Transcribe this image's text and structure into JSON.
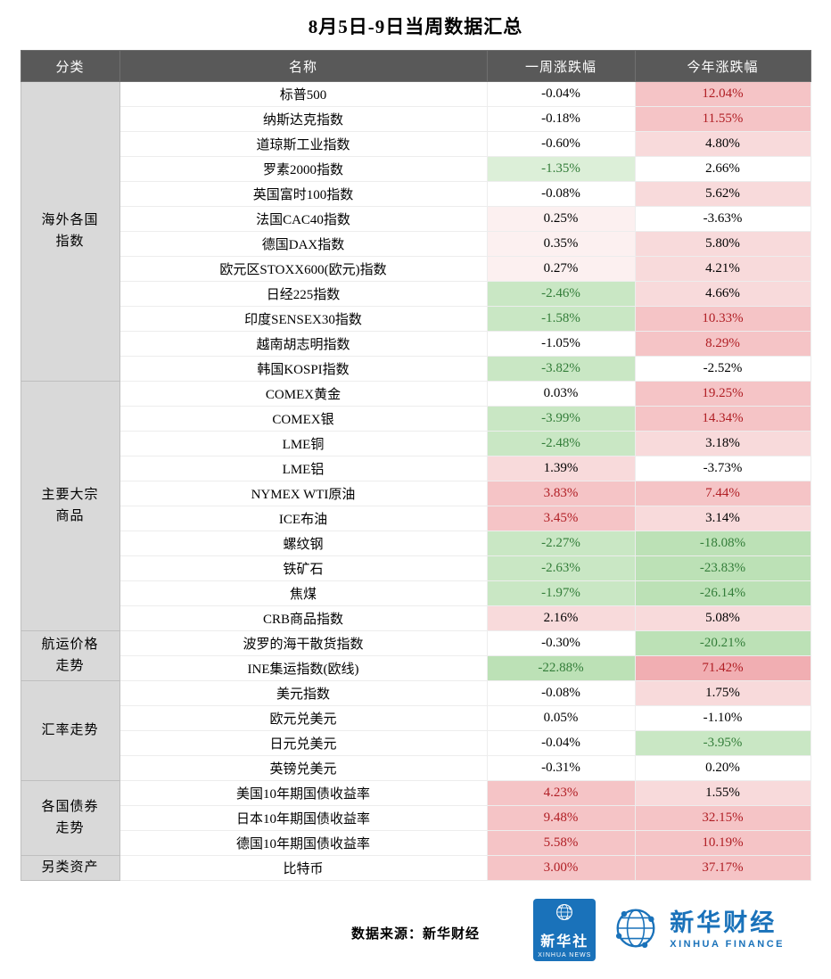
{
  "chart_data": {
    "type": "table",
    "title": "8月5日-9日当周数据汇总",
    "columns": [
      "分类",
      "名称",
      "一周涨跌幅",
      "今年涨跌幅"
    ],
    "groups": [
      {
        "category": "海外各国\n指数",
        "rows": [
          {
            "name": "标普500",
            "week": "-0.04%",
            "wc": "n",
            "ytd": "12.04%",
            "yc": "p3"
          },
          {
            "name": "纳斯达克指数",
            "week": "-0.18%",
            "wc": "n",
            "ytd": "11.55%",
            "yc": "p3"
          },
          {
            "name": "道琼斯工业指数",
            "week": "-0.60%",
            "wc": "n",
            "ytd": "4.80%",
            "yc": "p2"
          },
          {
            "name": "罗素2000指数",
            "week": "-1.35%",
            "wc": "g1",
            "ytd": "2.66%",
            "yc": "n"
          },
          {
            "name": "英国富时100指数",
            "week": "-0.08%",
            "wc": "n",
            "ytd": "5.62%",
            "yc": "p2"
          },
          {
            "name": "法国CAC40指数",
            "week": "0.25%",
            "wc": "p1",
            "ytd": "-3.63%",
            "yc": "n"
          },
          {
            "name": "德国DAX指数",
            "week": "0.35%",
            "wc": "p1",
            "ytd": "5.80%",
            "yc": "p2"
          },
          {
            "name": "欧元区STOXX600(欧元)指数",
            "week": "0.27%",
            "wc": "p1",
            "ytd": "4.21%",
            "yc": "p2"
          },
          {
            "name": "日经225指数",
            "week": "-2.46%",
            "wc": "g2",
            "ytd": "4.66%",
            "yc": "p2"
          },
          {
            "name": "印度SENSEX30指数",
            "week": "-1.58%",
            "wc": "g2",
            "ytd": "10.33%",
            "yc": "p3"
          },
          {
            "name": "越南胡志明指数",
            "week": "-1.05%",
            "wc": "n",
            "ytd": "8.29%",
            "yc": "p3"
          },
          {
            "name": "韩国KOSPI指数",
            "week": "-3.82%",
            "wc": "g2",
            "ytd": "-2.52%",
            "yc": "n"
          }
        ]
      },
      {
        "category": "主要大宗\n商品",
        "rows": [
          {
            "name": "COMEX黄金",
            "week": "0.03%",
            "wc": "n",
            "ytd": "19.25%",
            "yc": "p3"
          },
          {
            "name": "COMEX银",
            "week": "-3.99%",
            "wc": "g2",
            "ytd": "14.34%",
            "yc": "p3"
          },
          {
            "name": "LME铜",
            "week": "-2.48%",
            "wc": "g2",
            "ytd": "3.18%",
            "yc": "p2"
          },
          {
            "name": "LME铝",
            "week": "1.39%",
            "wc": "p2",
            "ytd": "-3.73%",
            "yc": "n"
          },
          {
            "name": "NYMEX WTI原油",
            "week": "3.83%",
            "wc": "p3",
            "ytd": "7.44%",
            "yc": "p3"
          },
          {
            "name": "ICE布油",
            "week": "3.45%",
            "wc": "p3",
            "ytd": "3.14%",
            "yc": "p2"
          },
          {
            "name": "螺纹钢",
            "week": "-2.27%",
            "wc": "g2",
            "ytd": "-18.08%",
            "yc": "g3"
          },
          {
            "name": "铁矿石",
            "week": "-2.63%",
            "wc": "g2",
            "ytd": "-23.83%",
            "yc": "g3"
          },
          {
            "name": "焦煤",
            "week": "-1.97%",
            "wc": "g2",
            "ytd": "-26.14%",
            "yc": "g3"
          },
          {
            "name": "CRB商品指数",
            "week": "2.16%",
            "wc": "p2",
            "ytd": "5.08%",
            "yc": "p2"
          }
        ]
      },
      {
        "category": "航运价格\n走势",
        "rows": [
          {
            "name": "波罗的海干散货指数",
            "week": "-0.30%",
            "wc": "n",
            "ytd": "-20.21%",
            "yc": "g3"
          },
          {
            "name": "INE集运指数(欧线)",
            "week": "-22.88%",
            "wc": "g3",
            "ytd": "71.42%",
            "yc": "p4"
          }
        ]
      },
      {
        "category": "汇率走势",
        "rows": [
          {
            "name": "美元指数",
            "week": "-0.08%",
            "wc": "n",
            "ytd": "1.75%",
            "yc": "p2"
          },
          {
            "name": "欧元兑美元",
            "week": "0.05%",
            "wc": "n",
            "ytd": "-1.10%",
            "yc": "n"
          },
          {
            "name": "日元兑美元",
            "week": "-0.04%",
            "wc": "n",
            "ytd": "-3.95%",
            "yc": "g2"
          },
          {
            "name": "英镑兑美元",
            "week": "-0.31%",
            "wc": "n",
            "ytd": "0.20%",
            "yc": "n"
          }
        ]
      },
      {
        "category": "各国债券\n走势",
        "rows": [
          {
            "name": "美国10年期国债收益率",
            "week": "4.23%",
            "wc": "p3",
            "ytd": "1.55%",
            "yc": "p2"
          },
          {
            "name": "日本10年期国债收益率",
            "week": "9.48%",
            "wc": "p3",
            "ytd": "32.15%",
            "yc": "p3"
          },
          {
            "name": "德国10年期国债收益率",
            "week": "5.58%",
            "wc": "p3",
            "ytd": "10.19%",
            "yc": "p3"
          }
        ]
      },
      {
        "category": "另类资产",
        "rows": [
          {
            "name": "比特币",
            "week": "3.00%",
            "wc": "p3",
            "ytd": "37.17%",
            "yc": "p3"
          }
        ]
      }
    ],
    "legend": "cell colors: red shades = gains, green shades = losses, white = near flat"
  },
  "footer": {
    "source": "数据来源：新华财经",
    "xinhua_news": {
      "cn": "新华社",
      "en": "XINHUA NEWS"
    },
    "xinhua_finance": {
      "cn": "新华财经",
      "en": "XINHUA FINANCE"
    }
  },
  "colors": {
    "header_bg": "#595959",
    "category_bg": "#d9d9d9",
    "up_text": "#b01e24",
    "down_text": "#337d39",
    "up_bg_strong": "#f1aeb2",
    "up_bg": "#f5c4c6",
    "up_bg_light": "#f8dadb",
    "down_bg_strong": "#bce1b6",
    "down_bg": "#c9e7c4",
    "down_bg_light": "#dcefd8",
    "brand_blue": "#1a72ba"
  }
}
